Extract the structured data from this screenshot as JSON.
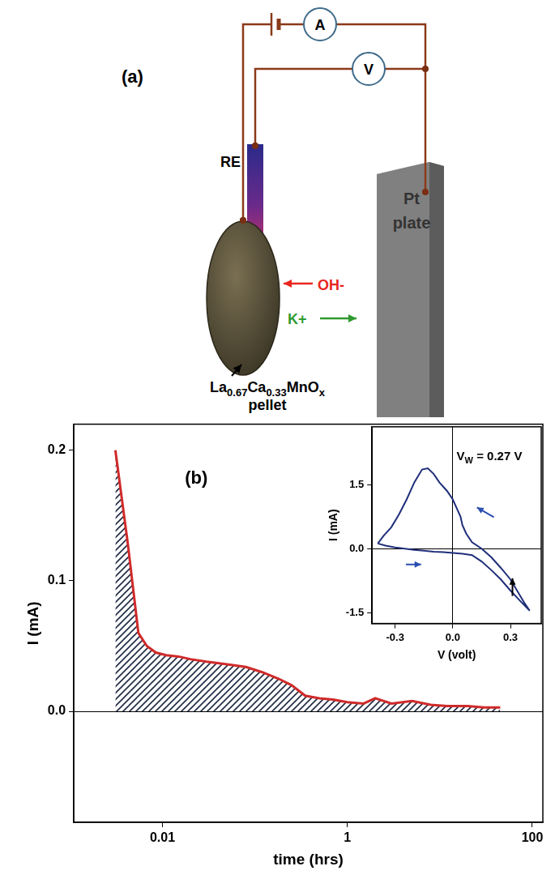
{
  "diagram": {
    "panel_label": "(a)",
    "ammeter": "A",
    "voltmeter": "V",
    "reference_electrode": "RE",
    "counter_electrode": [
      "Pt",
      "plate"
    ],
    "ions": [
      {
        "text": "OH-",
        "color": "#e8261f"
      },
      {
        "text": "K+",
        "color": "#2e9a2e"
      }
    ],
    "pellet": {
      "formula": [
        {
          "text": "La"
        },
        {
          "text": "0.67",
          "sub": true
        },
        {
          "text": "Ca"
        },
        {
          "text": "0.33",
          "sub": true
        },
        {
          "text": "MnO"
        },
        {
          "text": "x",
          "sub": true
        }
      ],
      "text": "pellet"
    }
  },
  "chart_data": [
    {
      "type": "area",
      "panel_label": "(b)",
      "x_label": "time (hrs)",
      "y_label": "I (mA)",
      "log": "x",
      "grid": false,
      "color": "#d02a2a",
      "marker": "none",
      "line_style": "solid",
      "x": [
        0.0031,
        0.0042,
        0.0055,
        0.0068,
        0.0085,
        0.011,
        0.015,
        0.02,
        0.03,
        0.05,
        0.08,
        0.12,
        0.18,
        0.25,
        0.35,
        0.5,
        0.7,
        1,
        1.5,
        2,
        3,
        5,
        8,
        12,
        20,
        30,
        45
      ],
      "values": [
        0.2,
        0.13,
        0.06,
        0.05,
        0.045,
        0.043,
        0.042,
        0.04,
        0.038,
        0.036,
        0.034,
        0.03,
        0.025,
        0.02,
        0.012,
        0.01,
        0.009,
        0.007,
        0.006,
        0.01,
        0.006,
        0.008,
        0.005,
        0.004,
        0.004,
        0.003,
        0.003
      ],
      "xlim": [
        0.0011,
        130
      ],
      "ylim": [
        -0.085,
        0.22
      ],
      "xticks": [
        0.01,
        1,
        100
      ],
      "yticks": [
        {
          "value": 0,
          "label": "0.0"
        },
        0.1,
        0.2
      ]
    },
    {
      "type": "line",
      "x_label": "V (volt)",
      "y_label": "I (mA)",
      "grid": false,
      "color": "#1f2f7a",
      "marker": "none",
      "line_style": "solid",
      "annotation": [
        {
          "text": "V"
        },
        {
          "text": "W",
          "sub": true
        },
        {
          "text": " = 0.27 V"
        }
      ],
      "x": [
        -0.39,
        -0.35,
        -0.3,
        -0.25,
        -0.2,
        -0.15,
        -0.1,
        -0.05,
        0,
        0.05,
        0.1,
        0.15,
        0.2,
        0.25,
        0.3,
        0.35,
        0.4,
        0.37,
        0.3,
        0.25,
        0.2,
        0.15,
        0.1,
        0.07,
        0.05,
        0.04,
        0.02,
        0,
        -0.03,
        -0.07,
        -0.1,
        -0.13,
        -0.16,
        -0.2,
        -0.24,
        -0.28,
        -0.32,
        -0.36,
        -0.39
      ],
      "values": [
        0.12,
        0.07,
        0.03,
        0,
        -0.03,
        -0.05,
        -0.07,
        -0.08,
        -0.1,
        -0.12,
        -0.15,
        -0.3,
        -0.5,
        -0.72,
        -0.98,
        -1.22,
        -1.45,
        -1.25,
        -0.72,
        -0.45,
        -0.2,
        0,
        0.15,
        0.35,
        0.55,
        0.75,
        0.95,
        1.15,
        1.35,
        1.55,
        1.75,
        1.88,
        1.85,
        1.55,
        1.15,
        0.8,
        0.5,
        0.3,
        0.12
      ],
      "xlim": [
        -0.42,
        0.46
      ],
      "ylim": [
        -1.75,
        2.85
      ],
      "xticks": [
        -0.3,
        {
          "value": 0,
          "label": "0.0"
        },
        0.3
      ],
      "yticks": [
        -1.5,
        {
          "value": 0,
          "label": "0.0"
        },
        1.5
      ]
    }
  ]
}
